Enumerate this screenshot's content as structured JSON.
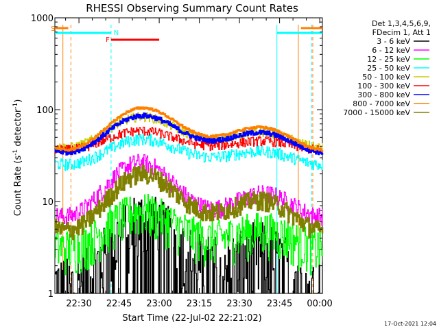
{
  "chart_data": {
    "type": "line",
    "title": "RHESSI Observing Summary Count Rates",
    "xlabel": "Start Time (22-Jul-02 22:21:02)",
    "ylabel_prefix": "Count Rate (s",
    "ylabel_mid": " detector",
    "ylabel_suffix": ")",
    "ylabel_sup": "-1",
    "y_scale": "log",
    "ylim": [
      1,
      1000
    ],
    "xlim_minutes_from_2220": [
      1,
      101
    ],
    "x_ticks": [
      {
        "t": 10,
        "label": "22:30"
      },
      {
        "t": 25,
        "label": "22:45"
      },
      {
        "t": 40,
        "label": "23:00"
      },
      {
        "t": 55,
        "label": "23:15"
      },
      {
        "t": 70,
        "label": "23:30"
      },
      {
        "t": 85,
        "label": "23:45"
      },
      {
        "t": 100,
        "label": "00:00"
      }
    ],
    "y_ticks": [
      {
        "v": 1,
        "label": "1"
      },
      {
        "v": 10,
        "label": "10"
      },
      {
        "v": 100,
        "label": "100"
      },
      {
        "v": 1000,
        "label": "1000"
      }
    ],
    "legend_header": [
      "Det 1,3,4,5,6,9,",
      "FDecim 1, Att 1"
    ],
    "legend_position": "right",
    "series": [
      {
        "name": "3 - 6 keV",
        "color": "#000000",
        "base": 2.6,
        "amp": 1.6,
        "phase": 0,
        "noise": 0.35
      },
      {
        "name": "6 - 12 keV",
        "color": "#ff00ff",
        "base": 12,
        "amp": 1.5,
        "phase": 2.0,
        "noise": 0.08
      },
      {
        "name": "12 - 25 keV",
        "color": "#00ff00",
        "base": 4.8,
        "amp": 1.3,
        "phase": 1.0,
        "noise": 0.18
      },
      {
        "name": "25 - 50 keV",
        "color": "#00ffff",
        "base": 34,
        "amp": 1.2,
        "phase": 0.5,
        "noise": 0.05
      },
      {
        "name": "50 - 100 keV",
        "color": "#cccc00",
        "base": 55,
        "amp": 1.25,
        "phase": 0.8,
        "noise": 0.04
      },
      {
        "name": "100 - 300 keV",
        "color": "#ff0000",
        "base": 45,
        "amp": 1.15,
        "phase": 1.3,
        "noise": 0.04
      },
      {
        "name": "300 - 800 keV",
        "color": "#0000ff",
        "base": 53,
        "amp": 1.3,
        "phase": 0.2,
        "noise": 0.02
      },
      {
        "name": "800 - 7000 keV",
        "color": "#ff8000",
        "base": 60,
        "amp": 1.35,
        "phase": 0.2,
        "noise": 0.01
      },
      {
        "name": "7000 - 15000 keV",
        "color": "#808000",
        "base": 9.5,
        "amp": 1.5,
        "phase": 0.3,
        "noise": 0.08
      }
    ],
    "markers": {
      "S": {
        "color": "#ff8000"
      },
      "N": {
        "color": "#00ffff"
      },
      "F": {
        "color": "#ff0000"
      }
    },
    "orbit_lines": [
      {
        "t": 4,
        "color": "#ff8000",
        "dashed": false
      },
      {
        "t": 7,
        "color": "#ff8000",
        "dashed": true
      },
      {
        "t": 22,
        "color": "#00ffff",
        "dashed": true
      },
      {
        "t": 84,
        "color": "#00ffff",
        "dashed": false
      },
      {
        "t": 92,
        "color": "#ff8000",
        "dashed": false
      },
      {
        "t": 97,
        "color": "#00ffff",
        "dashed": true
      },
      {
        "t": 97.4,
        "color": "#ff8000",
        "dashed": true
      }
    ],
    "footer_date": "17-Oct-2021 12:04"
  }
}
